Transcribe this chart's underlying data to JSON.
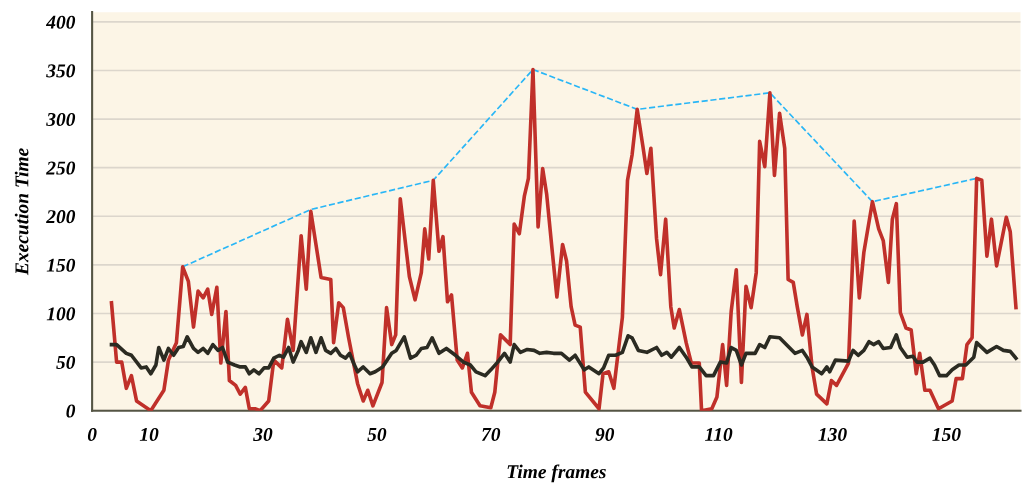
{
  "chart_data": {
    "type": "line",
    "xlabel": "Time frames",
    "ylabel": "Execution Time",
    "xlim": [
      0,
      163
    ],
    "xticks": [
      0,
      10,
      30,
      50,
      70,
      90,
      110,
      130,
      150
    ],
    "ylim": [
      0,
      410
    ],
    "yticks": [
      0,
      50,
      100,
      150,
      200,
      250,
      300,
      350,
      400
    ],
    "grid": "y",
    "marker": "none",
    "line_style": "solid",
    "series": [
      {
        "color": "#c0302a",
        "x": [
          3.4,
          4.3,
          5.2,
          6,
          6.9,
          7.8,
          10.3,
          12.6,
          13.4,
          14.8,
          15.9,
          16.9,
          17.8,
          18.6,
          19.5,
          20.3,
          21,
          21.9,
          22.6,
          23.5,
          24.1,
          25.2,
          26,
          26.9,
          27.6,
          28.6,
          29.5,
          31,
          31.9,
          33.3,
          34.3,
          35.3,
          36.7,
          37.6,
          38.4,
          40.2,
          41.9,
          42.4,
          43.3,
          44.1,
          45,
          46.6,
          47.6,
          48.4,
          49.3,
          50.9,
          51.7,
          52.6,
          53.3,
          54.1,
          55.7,
          56.7,
          57.8,
          58.4,
          59.1,
          59.9,
          60.9,
          61.6,
          62.4,
          63.1,
          64.1,
          65,
          65.9,
          66.6,
          68.1,
          70,
          70.7,
          71.7,
          73.4,
          74.1,
          75,
          75.9,
          76.6,
          77.4,
          78.3,
          79.1,
          79.8,
          80.7,
          81.6,
          82.6,
          83.3,
          84.1,
          84.8,
          85.7,
          86.6,
          89,
          89.7,
          90.7,
          91.6,
          93.1,
          94,
          94.8,
          95.7,
          96.7,
          97.4,
          98.1,
          99.1,
          99.8,
          100.7,
          101.6,
          102.2,
          103.1,
          104.3,
          105.2,
          106.6,
          107,
          108.8,
          109.7,
          110.7,
          111.4,
          112.2,
          113.1,
          114,
          114.8,
          115.7,
          116.6,
          117.2,
          118.1,
          119,
          119.8,
          120.7,
          121.6,
          122.2,
          123.1,
          123.8,
          124.7,
          125.5,
          126.4,
          127.2,
          129,
          129.8,
          130.7,
          132.8,
          133.8,
          134.7,
          135.5,
          137,
          138.1,
          138.9,
          139.8,
          140.5,
          141.2,
          141.9,
          142.9,
          143.8,
          144.7,
          145.3,
          146.2,
          147.1,
          148.6,
          151,
          151.7,
          152.8,
          153.6,
          154.5,
          155.3,
          156.2,
          157.1,
          157.9,
          158.8,
          160.5,
          161.2,
          162.2
        ],
        "values": [
          111,
          50,
          50,
          23,
          36,
          10,
          0,
          21,
          52,
          70,
          148,
          133,
          86,
          123,
          116,
          125,
          99,
          127,
          49,
          102,
          31,
          26,
          17,
          24,
          2,
          2,
          0,
          10,
          52,
          44,
          94,
          62,
          180,
          125,
          205,
          137,
          135,
          70,
          111,
          106,
          76,
          28,
          10,
          21,
          5,
          29,
          106,
          68,
          78,
          218,
          138,
          114,
          142,
          187,
          156,
          237,
          164,
          179,
          112,
          119,
          52,
          44,
          59,
          19,
          5,
          3,
          19,
          78,
          68,
          192,
          182,
          221,
          239,
          351,
          189,
          249,
          223,
          169,
          117,
          171,
          154,
          107,
          88,
          86,
          19,
          2,
          38,
          40,
          23,
          96,
          237,
          263,
          310,
          272,
          244,
          270,
          177,
          140,
          197,
          107,
          85,
          104,
          70,
          49,
          49,
          0,
          2,
          14,
          68,
          26,
          102,
          145,
          29,
          128,
          106,
          142,
          277,
          251,
          327,
          242,
          306,
          270,
          135,
          132,
          107,
          78,
          99,
          45,
          17,
          7,
          31,
          26,
          49,
          195,
          116,
          163,
          215,
          187,
          175,
          132,
          197,
          213,
          101,
          85,
          83,
          38,
          59,
          21,
          21,
          2,
          10,
          33,
          33,
          68,
          75,
          239,
          237,
          159,
          197,
          149,
          199,
          184,
          106
        ]
      },
      {
        "color": "#2b2b22",
        "x": [
          3.4,
          4.3,
          6,
          6.9,
          8.6,
          9.5,
          10.3,
          11.2,
          11.7,
          12.6,
          13.4,
          14.3,
          15.2,
          16,
          16.7,
          17.8,
          18.6,
          19.5,
          20.3,
          21.2,
          22.1,
          22.9,
          23.8,
          25,
          26,
          26.9,
          27.6,
          28.4,
          29.3,
          30.2,
          31,
          31.9,
          32.9,
          33.6,
          34.5,
          35.3,
          36.2,
          36.7,
          37.6,
          38.4,
          39.3,
          40.2,
          41,
          41.9,
          42.8,
          43.6,
          44.5,
          45.2,
          45.9,
          46.6,
          47.6,
          48.8,
          49.7,
          51,
          52.6,
          53.4,
          54.8,
          55.9,
          56.9,
          57.8,
          58.8,
          59.7,
          60.9,
          62.2,
          63.8,
          65.2,
          66.4,
          67.4,
          69,
          70,
          71.2,
          72.4,
          73.4,
          74.1,
          75.2,
          76.4,
          77.6,
          78.6,
          79.8,
          81,
          82.4,
          83.8,
          84.8,
          86.4,
          87.2,
          89,
          89.8,
          90.7,
          91.9,
          93.1,
          94.1,
          94.8,
          95.9,
          97.4,
          99.1,
          100,
          100.9,
          101.7,
          103.1,
          104.3,
          105.3,
          106.6,
          107.8,
          109.1,
          110.3,
          111.4,
          112.2,
          113.1,
          114,
          114.8,
          116.4,
          117.2,
          118.1,
          119,
          120.7,
          122.4,
          123.4,
          124.7,
          125.5,
          126.4,
          128.1,
          129,
          129.5,
          130.5,
          132.8,
          133.6,
          134.5,
          135.5,
          136.4,
          137.2,
          138.1,
          138.9,
          140.2,
          141.2,
          141.9,
          143.1,
          144.1,
          144.8,
          145.9,
          147.1,
          147.9,
          148.8,
          150,
          151,
          152.2,
          153.4,
          154.8,
          155.3,
          157.1,
          158.8,
          160,
          161.2,
          162.2
        ],
        "values": [
          68,
          68,
          59,
          57,
          44,
          45,
          38,
          47,
          65,
          52,
          64,
          57,
          65,
          66,
          76,
          64,
          60,
          64,
          59,
          68,
          62,
          65,
          50,
          47,
          45,
          45,
          38,
          42,
          38,
          44,
          44,
          54,
          57,
          55,
          65,
          50,
          62,
          71,
          60,
          75,
          60,
          75,
          62,
          59,
          64,
          57,
          54,
          59,
          49,
          40,
          45,
          38,
          40,
          45,
          59,
          62,
          76,
          54,
          57,
          64,
          65,
          75,
          59,
          64,
          57,
          50,
          47,
          40,
          36,
          42,
          50,
          59,
          50,
          68,
          60,
          63,
          62,
          59,
          60,
          59,
          59,
          52,
          57,
          42,
          45,
          38,
          44,
          57,
          57,
          60,
          77,
          75,
          62,
          60,
          65,
          57,
          60,
          55,
          65,
          55,
          45,
          45,
          36,
          36,
          50,
          49,
          65,
          62,
          47,
          59,
          59,
          68,
          65,
          76,
          75,
          65,
          59,
          62,
          55,
          45,
          38,
          45,
          40,
          52,
          51,
          62,
          57,
          62,
          71,
          68,
          71,
          64,
          65,
          78,
          65,
          55,
          56,
          50,
          50,
          54,
          47,
          36,
          36,
          42,
          47,
          47,
          55,
          70,
          60,
          66,
          62,
          61,
          54
        ]
      },
      {
        "color": "#29b6f6",
        "line_style": "dashed",
        "x": [
          15.9,
          38.4,
          59.9,
          77.4,
          95.7,
          119,
          137,
          155.3
        ],
        "values": [
          148,
          207,
          237,
          351,
          310,
          327,
          215,
          239
        ]
      }
    ]
  }
}
